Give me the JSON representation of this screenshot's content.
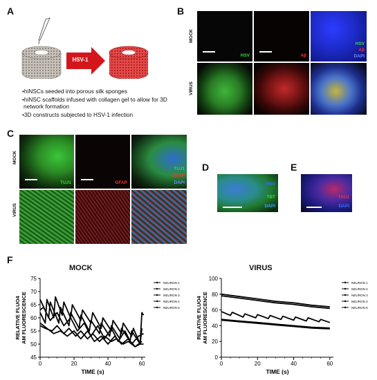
{
  "panels": {
    "A": "A",
    "B": "B",
    "C": "C",
    "D": "D",
    "E": "E",
    "F": "F"
  },
  "schematic": {
    "arrow_label": "HSV-1",
    "bullets": [
      "•hiNSCs seeded into porous silk sponges",
      "•hiNSC scaffolds infused with collagen gel to allow for 3D",
      "network formation",
      "•3D constructs subjected to HSV-1 infection"
    ]
  },
  "panel_b": {
    "rows": [
      "MOCK",
      "VIRUS"
    ],
    "labels": {
      "hsv": "HSV",
      "ab": "Aβ",
      "dapi": "DAPI"
    },
    "colors": {
      "hsv": "#33dd33",
      "ab": "#ff3030",
      "dapi": "#3a6cff"
    }
  },
  "panel_c": {
    "rows": [
      "MOCK",
      "VIRUS"
    ],
    "labels": {
      "tuj1": "TUJ1",
      "gfap": "GFAP",
      "dapi": "DAPI"
    },
    "colors": {
      "tuj1": "#33dd33",
      "gfap": "#ff3030",
      "dapi": "#3a6cff"
    }
  },
  "panel_d": {
    "labels": {
      "hsv": "HSV",
      "tbt": "TBT",
      "dapi": "DAPI"
    },
    "colors": {
      "hsv": "#3a6cff",
      "tbt": "#33dd33",
      "dapi": "#3aa0ff"
    }
  },
  "panel_e": {
    "labels": {
      "tau1": "TAU1",
      "dapi": "DAPI"
    },
    "colors": {
      "tau1": "#ff3030",
      "dapi": "#3a6cff"
    }
  },
  "chart_data": [
    {
      "type": "line",
      "title": "MOCK",
      "xlabel": "TIME (s)",
      "ylabel": "RELATIVE FLUO4 AM FLUORESCENCE",
      "xlim": [
        0,
        62
      ],
      "ylim": [
        45,
        75
      ],
      "xticks": [
        0,
        20,
        40,
        60
      ],
      "yticks": [
        45,
        50,
        55,
        60,
        65,
        70,
        75
      ],
      "legend_position": "right",
      "series": [
        {
          "name": "NEURON 1",
          "x": [
            0,
            3,
            4,
            8,
            9,
            13,
            14,
            18,
            19,
            24,
            25,
            30,
            31,
            36,
            37,
            42,
            43,
            48,
            49,
            54,
            55,
            59,
            60,
            61
          ],
          "y": [
            62,
            58,
            67,
            60,
            68,
            61,
            66,
            60,
            65,
            59,
            63,
            58,
            62,
            56,
            60,
            55,
            59,
            54,
            58,
            53,
            56,
            50,
            62,
            61
          ]
        },
        {
          "name": "NEURON 2",
          "x": [
            0,
            5,
            6,
            11,
            12,
            17,
            18,
            23,
            24,
            29,
            30,
            35,
            36,
            41,
            42,
            47,
            48,
            53,
            54,
            59,
            60
          ],
          "y": [
            67,
            60,
            66,
            58,
            64,
            57,
            62,
            56,
            61,
            55,
            59,
            54,
            58,
            53,
            57,
            52,
            56,
            51,
            55,
            50,
            56
          ]
        },
        {
          "name": "NEURON 3",
          "x": [
            0,
            2,
            6,
            10,
            14,
            18,
            22,
            26,
            30,
            34,
            38,
            42,
            46,
            50,
            54,
            58,
            61
          ],
          "y": [
            63,
            64,
            59,
            62,
            57,
            60,
            55,
            58,
            53,
            57,
            52,
            56,
            51,
            55,
            50,
            53,
            54
          ]
        },
        {
          "name": "NEURON 4",
          "x": [
            0,
            4,
            8,
            12,
            16,
            20,
            24,
            28,
            32,
            36,
            40,
            44,
            48,
            52,
            56,
            60
          ],
          "y": [
            58,
            56,
            54,
            55,
            53,
            55,
            52,
            55,
            51,
            53,
            50,
            53,
            50,
            52,
            49,
            51
          ]
        },
        {
          "name": "NEURON 5",
          "x": [
            0,
            3,
            7,
            10,
            14,
            17,
            21,
            24,
            28,
            31,
            35,
            38,
            42,
            45,
            49,
            52,
            56,
            59,
            61
          ],
          "y": [
            57,
            56,
            55,
            57,
            54,
            56,
            53,
            55,
            52,
            54,
            51,
            53,
            51,
            52,
            50,
            51,
            49,
            50,
            50
          ]
        }
      ]
    },
    {
      "type": "line",
      "title": "VIRUS",
      "xlabel": "TIME (s)",
      "ylabel": "RELATIVE FLUO4 AM FLUORESCENCE",
      "xlim": [
        0,
        62
      ],
      "ylim": [
        0,
        100
      ],
      "xticks": [
        0,
        20,
        40,
        60
      ],
      "yticks": [
        0,
        20,
        40,
        60,
        80,
        100
      ],
      "legend_position": "right",
      "series": [
        {
          "name": "NEURON 1",
          "x": [
            0,
            10,
            20,
            30,
            40,
            50,
            60
          ],
          "y": [
            80,
            77,
            74,
            71,
            69,
            66,
            64
          ]
        },
        {
          "name": "NEURON 2",
          "x": [
            0,
            10,
            20,
            30,
            40,
            50,
            60
          ],
          "y": [
            78,
            75,
            72,
            69,
            67,
            64,
            62
          ]
        },
        {
          "name": "NEURON 3",
          "x": [
            0,
            5,
            6,
            12,
            13,
            19,
            20,
            26,
            27,
            33,
            34,
            40,
            41,
            47,
            48,
            54,
            55,
            60
          ],
          "y": [
            58,
            53,
            57,
            51,
            55,
            50,
            54,
            49,
            53,
            48,
            52,
            47,
            51,
            46,
            50,
            45,
            48,
            44
          ]
        },
        {
          "name": "NEURON 4",
          "x": [
            0,
            10,
            20,
            30,
            40,
            50,
            60
          ],
          "y": [
            48,
            46,
            44,
            42,
            40,
            38,
            37
          ]
        },
        {
          "name": "NEURON 5",
          "x": [
            0,
            10,
            20,
            30,
            40,
            50,
            60
          ],
          "y": [
            47,
            45,
            43,
            41,
            39,
            37,
            36
          ]
        }
      ]
    }
  ]
}
